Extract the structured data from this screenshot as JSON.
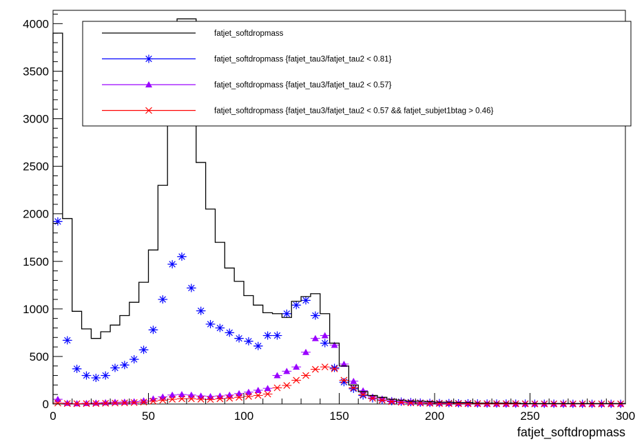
{
  "chart_data": {
    "type": "histogram",
    "xlabel": "fatjet_softdropmass",
    "xlim": [
      0,
      300
    ],
    "ylim": [
      0,
      4000
    ],
    "bin_width": 5,
    "x_ticks": [
      0,
      50,
      100,
      150,
      200,
      250,
      300
    ],
    "y_ticks": [
      0,
      500,
      1000,
      1500,
      2000,
      2500,
      3000,
      3500,
      4000
    ],
    "legend_position": "top-center",
    "series": [
      {
        "name": "fatjet_softdropmass",
        "style": "step",
        "marker": "none",
        "color": "#000000",
        "values": [
          3900,
          1950,
          975,
          790,
          690,
          760,
          830,
          930,
          1070,
          1280,
          1620,
          2300,
          3050,
          4050,
          4050,
          2540,
          2050,
          1700,
          1430,
          1290,
          1140,
          1040,
          960,
          950,
          910,
          1080,
          1130,
          1160,
          950,
          640,
          400,
          200,
          130,
          90,
          70,
          50,
          40,
          30,
          30,
          25,
          20,
          20,
          15,
          15,
          10,
          10,
          10,
          10,
          10,
          5,
          5,
          5,
          5,
          5,
          5,
          5,
          5,
          5,
          5,
          5
        ]
      },
      {
        "name": "fatjet_softdropmass {fatjet_tau3/fatjet_tau2 < 0.81}",
        "style": "markers",
        "marker": "asterisk",
        "color": "#0000ff",
        "values": [
          1920,
          670,
          370,
          300,
          275,
          300,
          380,
          410,
          470,
          570,
          780,
          1100,
          1470,
          1550,
          1220,
          980,
          840,
          800,
          750,
          690,
          660,
          610,
          720,
          720,
          950,
          1040,
          1090,
          930,
          640,
          380,
          230,
          160,
          90,
          60,
          40,
          30,
          25,
          20,
          15,
          12,
          10,
          10,
          8,
          8,
          6,
          5,
          5,
          5,
          4,
          4,
          3,
          3,
          3,
          3,
          2,
          2,
          2,
          2,
          2,
          2
        ]
      },
      {
        "name": "fatjet_softdropmass {fatjet_tau3/fatjet_tau2 < 0.57}",
        "style": "markers",
        "marker": "triangle",
        "color": "#9a00ff",
        "values": [
          50,
          10,
          5,
          8,
          12,
          15,
          20,
          22,
          25,
          35,
          55,
          75,
          95,
          100,
          95,
          85,
          80,
          85,
          95,
          110,
          125,
          145,
          165,
          300,
          345,
          390,
          545,
          690,
          720,
          620,
          420,
          240,
          140,
          75,
          55,
          35,
          25,
          20,
          15,
          12,
          10,
          8,
          6,
          5,
          4,
          3,
          3,
          2,
          2,
          2,
          2,
          2,
          2,
          1,
          1,
          1,
          1,
          1,
          1,
          1
        ]
      },
      {
        "name": "fatjet_softdropmass {fatjet_tau3/fatjet_tau2 < 0.57 && fatjet_subjet1btag > 0.46}",
        "style": "markers",
        "marker": "cross",
        "color": "#ff0000",
        "values": [
          10,
          5,
          3,
          4,
          5,
          8,
          10,
          12,
          15,
          20,
          30,
          40,
          50,
          55,
          55,
          50,
          48,
          55,
          60,
          70,
          80,
          90,
          105,
          170,
          195,
          250,
          300,
          365,
          390,
          370,
          250,
          170,
          100,
          60,
          40,
          25,
          18,
          12,
          10,
          8,
          6,
          5,
          4,
          3,
          3,
          2,
          2,
          2,
          2,
          2,
          1,
          1,
          1,
          1,
          1,
          1,
          1,
          1,
          1,
          1
        ]
      }
    ]
  }
}
